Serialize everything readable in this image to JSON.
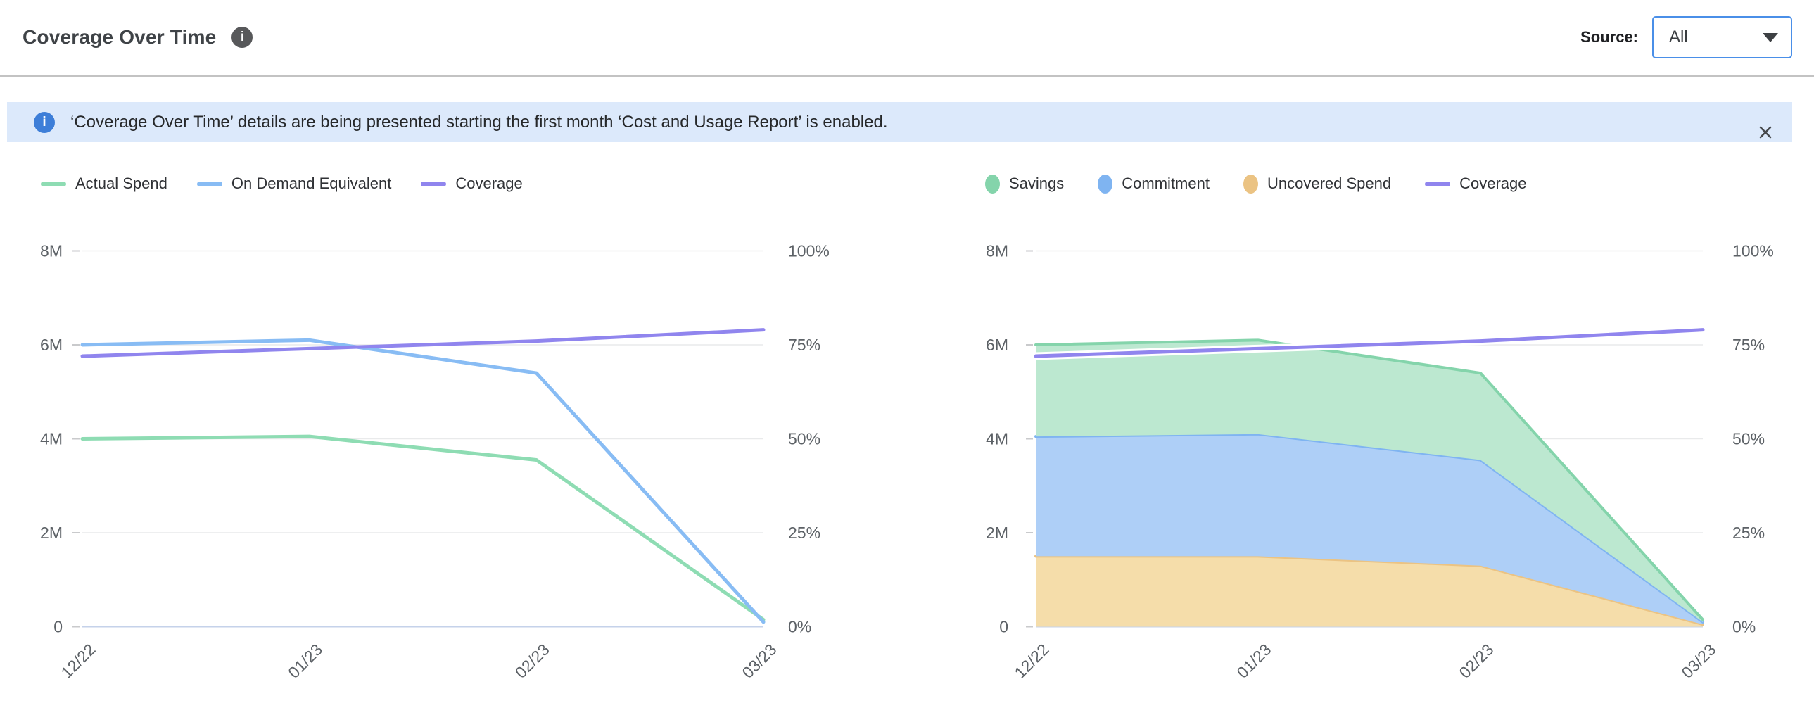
{
  "header": {
    "title": "Coverage Over Time",
    "source_label": "Source:",
    "source_value": "All"
  },
  "icons": {
    "info_glyph": "i",
    "close_glyph": "✕"
  },
  "banner": {
    "message": "‘Coverage Over Time’ details are being presented starting the first month ‘Cost and Usage Report’ is enabled."
  },
  "chart_data": [
    {
      "type": "line",
      "x": [
        "12/22",
        "01/23",
        "02/23",
        "03/23"
      ],
      "left_axis": {
        "ticks": [
          "8M",
          "6M",
          "4M",
          "2M",
          "0"
        ],
        "max": 8000000
      },
      "right_axis": {
        "ticks": [
          "100%",
          "75%",
          "50%",
          "25%",
          "0%"
        ],
        "max": 100
      },
      "grid": true,
      "legend_position": "top",
      "series": [
        {
          "name": "Actual Spend",
          "marker": "line",
          "axis": "left",
          "color": "#8edcb3",
          "values": [
            4000000,
            4050000,
            3550000,
            150000
          ]
        },
        {
          "name": "On Demand Equivalent",
          "marker": "line",
          "axis": "left",
          "color": "#88bcf4",
          "values": [
            6000000,
            6100000,
            5400000,
            100000
          ]
        },
        {
          "name": "Coverage",
          "marker": "line",
          "axis": "right",
          "color": "#9085ee",
          "values": [
            72,
            74,
            76,
            79
          ]
        }
      ]
    },
    {
      "type": "area",
      "x": [
        "12/22",
        "01/23",
        "02/23",
        "03/23"
      ],
      "left_axis": {
        "ticks": [
          "8M",
          "6M",
          "4M",
          "2M",
          "0"
        ],
        "max": 8000000
      },
      "right_axis": {
        "ticks": [
          "100%",
          "75%",
          "50%",
          "25%",
          "0%"
        ],
        "max": 100
      },
      "grid": true,
      "legend_position": "top",
      "stack_order": [
        "Uncovered Spend",
        "Commitment",
        "Savings"
      ],
      "series": [
        {
          "name": "Savings",
          "marker": "dot",
          "axis": "left",
          "color": "#84d4ab",
          "fill": "#bce8d0",
          "values": [
            1950000,
            2000000,
            1850000,
            50000
          ]
        },
        {
          "name": "Commitment",
          "marker": "dot",
          "axis": "left",
          "color": "#7fb4f1",
          "fill": "#aecff7",
          "values": [
            2550000,
            2600000,
            2250000,
            50000
          ]
        },
        {
          "name": "Uncovered Spend",
          "marker": "dot",
          "axis": "left",
          "color": "#ebc383",
          "fill": "#f5ddaa",
          "values": [
            1500000,
            1500000,
            1300000,
            50000
          ]
        },
        {
          "name": "Coverage",
          "marker": "line",
          "axis": "right",
          "color": "#9085ee",
          "values": [
            72,
            74,
            76,
            79
          ]
        }
      ]
    }
  ]
}
